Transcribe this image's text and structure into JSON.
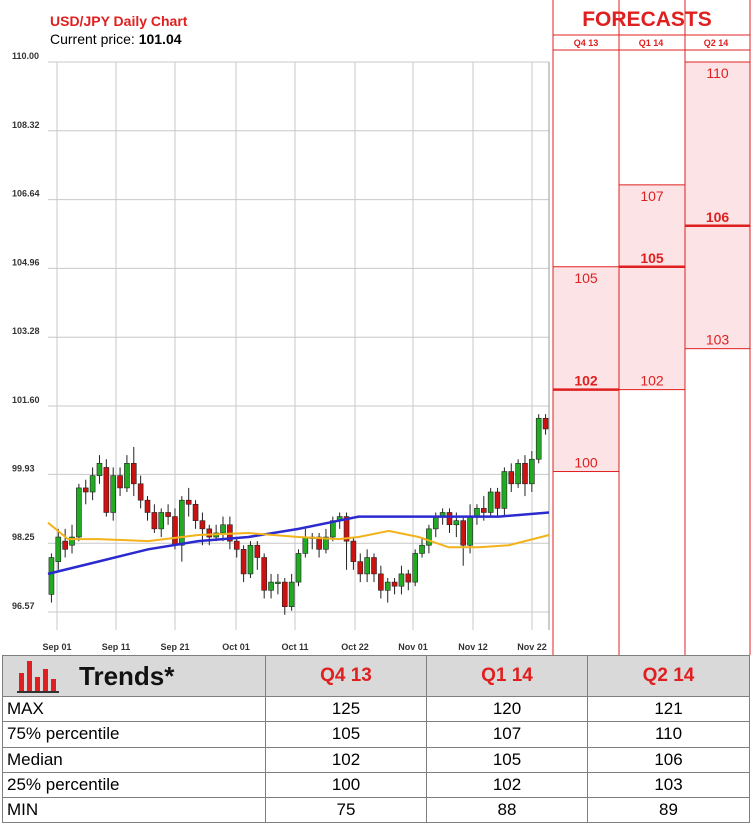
{
  "header": {
    "title": "USD/JPY Daily Chart",
    "price_label": "Current price:",
    "price_value": "101.04"
  },
  "forecast": {
    "title": "FORECASTS",
    "quarters": [
      "Q4 13",
      "Q1 14",
      "Q2 14"
    ],
    "columns": [
      {
        "quarter": "Q4 13",
        "p75": 105,
        "median": 102,
        "p25": 100
      },
      {
        "quarter": "Q1 14",
        "p75": 107,
        "median": 105,
        "p25": 102
      },
      {
        "quarter": "Q2 14",
        "p75": 110,
        "median": 106,
        "p25": 103
      }
    ]
  },
  "colors": {
    "up": "#22aa22",
    "down": "#cc1111",
    "ma_slow": "#2a2ad0",
    "ma_fast": "#f2b21a",
    "forecast": "#e02020",
    "forecast_band": "#fbe3e6",
    "grid": "#c8c8c8",
    "table_header_bg": "#d9d9d9"
  },
  "chart_data": {
    "type": "candlestick",
    "ylim": [
      96.3,
      110.0
    ],
    "yticks": [
      "110.00",
      "108.32",
      "106.64",
      "104.96",
      "103.28",
      "101.60",
      "99.93",
      "98.25",
      "96.57"
    ],
    "xticks": [
      "Sep 01",
      "Sep 11",
      "Sep 21",
      "Oct 01",
      "Oct 11",
      "Oct 22",
      "Nov 01",
      "Nov 12",
      "Nov 22"
    ],
    "candles": [
      [
        97.0,
        97.9,
        96.8,
        98.0
      ],
      [
        97.8,
        98.4,
        97.6,
        98.6
      ],
      [
        98.3,
        98.1,
        97.9,
        98.6
      ],
      [
        98.2,
        98.4,
        98.0,
        98.7
      ],
      [
        98.4,
        99.6,
        98.3,
        99.7
      ],
      [
        99.6,
        99.5,
        99.2,
        99.8
      ],
      [
        99.5,
        99.9,
        99.3,
        100.1
      ],
      [
        99.9,
        100.2,
        99.7,
        100.4
      ],
      [
        100.1,
        99.0,
        98.9,
        100.3
      ],
      [
        99.0,
        99.9,
        98.8,
        100.1
      ],
      [
        99.9,
        99.6,
        99.4,
        100.1
      ],
      [
        99.6,
        100.2,
        99.5,
        100.4
      ],
      [
        100.2,
        99.7,
        99.4,
        100.6
      ],
      [
        99.7,
        99.3,
        99.1,
        99.9
      ],
      [
        99.3,
        99.0,
        98.8,
        99.4
      ],
      [
        99.0,
        98.6,
        98.5,
        99.2
      ],
      [
        98.6,
        99.0,
        98.4,
        99.1
      ],
      [
        99.0,
        98.9,
        98.7,
        99.2
      ],
      [
        98.9,
        98.2,
        98.1,
        99.1
      ],
      [
        98.2,
        99.3,
        97.8,
        99.4
      ],
      [
        99.3,
        99.2,
        98.9,
        99.6
      ],
      [
        99.2,
        98.8,
        98.6,
        99.3
      ],
      [
        98.8,
        98.6,
        98.2,
        99.0
      ],
      [
        98.6,
        98.4,
        98.2,
        98.7
      ],
      [
        98.4,
        98.5,
        98.3,
        98.7
      ],
      [
        98.5,
        98.7,
        98.3,
        98.9
      ],
      [
        98.7,
        98.3,
        98.1,
        98.9
      ],
      [
        98.3,
        98.1,
        97.9,
        98.4
      ],
      [
        98.1,
        97.5,
        97.3,
        98.2
      ],
      [
        97.5,
        98.2,
        97.4,
        98.3
      ],
      [
        98.2,
        97.9,
        97.6,
        98.3
      ],
      [
        97.9,
        97.1,
        96.9,
        98.0
      ],
      [
        97.1,
        97.3,
        96.9,
        97.5
      ],
      [
        97.3,
        97.3,
        97.0,
        97.5
      ],
      [
        97.3,
        96.7,
        96.5,
        97.4
      ],
      [
        96.7,
        97.3,
        96.6,
        97.5
      ],
      [
        97.3,
        98.0,
        97.2,
        98.1
      ],
      [
        98.0,
        98.4,
        97.9,
        98.6
      ],
      [
        98.4,
        98.4,
        98.1,
        98.5
      ],
      [
        98.4,
        98.1,
        97.9,
        98.5
      ],
      [
        98.1,
        98.4,
        98.0,
        98.6
      ],
      [
        98.4,
        98.8,
        98.3,
        98.9
      ],
      [
        98.8,
        98.9,
        98.6,
        99.0
      ],
      [
        98.9,
        98.3,
        97.6,
        99.0
      ],
      [
        98.3,
        97.8,
        97.6,
        98.4
      ],
      [
        97.8,
        97.5,
        97.3,
        98.0
      ],
      [
        97.5,
        97.9,
        97.3,
        98.1
      ],
      [
        97.9,
        97.5,
        97.3,
        98.0
      ],
      [
        97.5,
        97.1,
        96.9,
        97.7
      ],
      [
        97.1,
        97.3,
        96.8,
        97.4
      ],
      [
        97.3,
        97.2,
        97.0,
        97.4
      ],
      [
        97.2,
        97.5,
        97.0,
        97.7
      ],
      [
        97.5,
        97.3,
        97.1,
        97.6
      ],
      [
        97.3,
        98.0,
        97.2,
        98.1
      ],
      [
        98.0,
        98.2,
        97.9,
        98.4
      ],
      [
        98.2,
        98.6,
        98.0,
        98.7
      ],
      [
        98.6,
        98.9,
        98.4,
        99.0
      ],
      [
        98.9,
        99.0,
        98.7,
        99.1
      ],
      [
        99.0,
        98.7,
        98.5,
        99.1
      ],
      [
        98.7,
        98.8,
        98.4,
        99.0
      ],
      [
        98.8,
        98.2,
        97.7,
        98.9
      ],
      [
        98.2,
        98.9,
        98.0,
        99.2
      ],
      [
        98.9,
        99.1,
        98.7,
        99.2
      ],
      [
        99.1,
        99.0,
        98.8,
        99.4
      ],
      [
        99.0,
        99.5,
        98.9,
        99.6
      ],
      [
        99.5,
        99.1,
        98.9,
        99.6
      ],
      [
        99.1,
        100.0,
        98.9,
        100.1
      ],
      [
        100.0,
        99.7,
        99.5,
        100.2
      ],
      [
        99.7,
        100.2,
        99.6,
        100.3
      ],
      [
        100.2,
        99.7,
        99.4,
        100.4
      ],
      [
        99.7,
        100.3,
        99.5,
        100.5
      ],
      [
        100.3,
        101.3,
        100.2,
        101.4
      ],
      [
        101.3,
        101.04,
        100.9,
        101.4
      ]
    ],
    "ma_slow": [
      [
        0,
        97.5
      ],
      [
        10,
        97.8
      ],
      [
        20,
        98.1
      ],
      [
        30,
        98.3
      ],
      [
        40,
        98.4
      ],
      [
        50,
        98.6
      ],
      [
        58,
        98.8
      ],
      [
        62,
        98.9
      ],
      [
        70,
        98.9
      ],
      [
        80,
        98.9
      ],
      [
        90,
        98.9
      ],
      [
        100,
        99.0
      ]
    ],
    "ma_fast": [
      [
        0,
        98.75
      ],
      [
        4,
        98.35
      ],
      [
        10,
        98.35
      ],
      [
        20,
        98.3
      ],
      [
        30,
        98.45
      ],
      [
        40,
        98.5
      ],
      [
        50,
        98.4
      ],
      [
        58,
        98.35
      ],
      [
        62,
        98.4
      ],
      [
        68,
        98.55
      ],
      [
        74,
        98.4
      ],
      [
        80,
        98.15
      ],
      [
        86,
        98.15
      ],
      [
        92,
        98.2
      ],
      [
        100,
        98.45
      ]
    ]
  },
  "trends": {
    "title": "Trends*",
    "icon": "bar-chart-icon",
    "columns": [
      "Q4 13",
      "Q1 14",
      "Q2 14"
    ],
    "rows": [
      {
        "label": "MAX",
        "values": [
          "125",
          "120",
          "121"
        ]
      },
      {
        "label": "75% percentile",
        "values": [
          "105",
          "107",
          "110"
        ]
      },
      {
        "label": "Median",
        "values": [
          "102",
          "105",
          "106"
        ]
      },
      {
        "label": "25% percentile",
        "values": [
          "100",
          "102",
          "103"
        ]
      },
      {
        "label": "MIN",
        "values": [
          "75",
          "88",
          "89"
        ]
      }
    ]
  }
}
